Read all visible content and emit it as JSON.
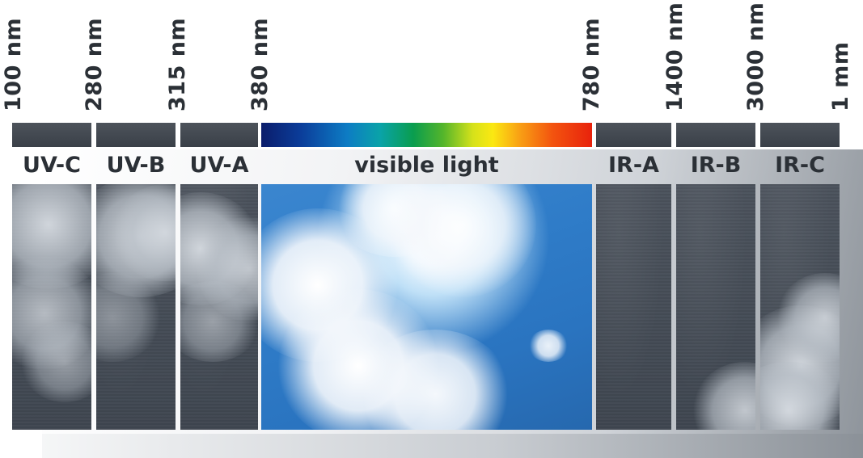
{
  "wavelengths": [
    "100 nm",
    "280 nm",
    "315 nm",
    "380 nm",
    "780 nm",
    "1400 nm",
    "3000 nm",
    "1 mm"
  ],
  "bands": {
    "uvc": "UV-C",
    "uvb": "UV-B",
    "uva": "UV-A",
    "visible": "visible light",
    "ira": "IR-A",
    "irb": "IR-B",
    "irc": "IR-C"
  },
  "colors": {
    "label_text": "#2b3036",
    "band_bar": "#3f454d",
    "sky_blue": "#2f7cc8"
  }
}
